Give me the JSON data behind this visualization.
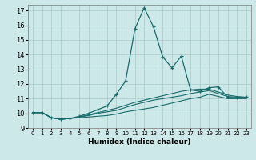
{
  "xlabel": "Humidex (Indice chaleur)",
  "bg_color": "#cde8e8",
  "grid_color": "#aecece",
  "line_color": "#1a6b6b",
  "xlim": [
    -0.5,
    23.5
  ],
  "ylim": [
    9,
    17.4
  ],
  "xticks": [
    0,
    1,
    2,
    3,
    4,
    5,
    6,
    7,
    8,
    9,
    10,
    11,
    12,
    13,
    14,
    15,
    16,
    17,
    18,
    19,
    20,
    21,
    22,
    23
  ],
  "yticks": [
    9,
    10,
    11,
    12,
    13,
    14,
    15,
    16,
    17
  ],
  "series": [
    {
      "x": [
        0,
        1,
        2,
        3,
        4,
        5,
        6,
        7,
        8,
        9,
        10,
        11,
        12,
        13,
        14,
        15,
        16,
        17,
        18,
        19,
        20,
        21,
        22,
        23
      ],
      "y": [
        10.05,
        10.05,
        9.7,
        9.6,
        9.65,
        9.7,
        9.75,
        9.8,
        9.85,
        9.95,
        10.1,
        10.2,
        10.3,
        10.4,
        10.55,
        10.7,
        10.85,
        11.0,
        11.1,
        11.3,
        11.15,
        11.0,
        11.0,
        11.0
      ],
      "marker": false
    },
    {
      "x": [
        0,
        1,
        2,
        3,
        4,
        5,
        6,
        7,
        8,
        9,
        10,
        11,
        12,
        13,
        14,
        15,
        16,
        17,
        18,
        19,
        20,
        21,
        22,
        23
      ],
      "y": [
        10.05,
        10.05,
        9.7,
        9.6,
        9.65,
        9.75,
        9.85,
        10.0,
        10.1,
        10.2,
        10.4,
        10.6,
        10.75,
        10.9,
        11.0,
        11.1,
        11.2,
        11.35,
        11.45,
        11.55,
        11.35,
        11.15,
        11.1,
        11.1
      ],
      "marker": false
    },
    {
      "x": [
        0,
        1,
        2,
        3,
        4,
        5,
        6,
        7,
        8,
        9,
        10,
        11,
        12,
        13,
        14,
        15,
        16,
        17,
        18,
        19,
        20,
        21,
        22,
        23
      ],
      "y": [
        10.05,
        10.05,
        9.7,
        9.6,
        9.65,
        9.75,
        9.9,
        10.05,
        10.2,
        10.35,
        10.55,
        10.75,
        10.9,
        11.05,
        11.2,
        11.35,
        11.5,
        11.6,
        11.65,
        11.65,
        11.45,
        11.25,
        11.15,
        11.1
      ],
      "marker": false
    },
    {
      "x": [
        0,
        1,
        2,
        3,
        4,
        5,
        6,
        7,
        8,
        9,
        10,
        11,
        12,
        13,
        14,
        15,
        16,
        17,
        18,
        19,
        20,
        21,
        22,
        23
      ],
      "y": [
        10.05,
        10.05,
        9.7,
        9.6,
        9.65,
        9.8,
        10.0,
        10.25,
        10.5,
        11.3,
        12.2,
        15.75,
        17.2,
        15.9,
        13.85,
        13.1,
        13.9,
        11.6,
        11.5,
        11.75,
        11.8,
        11.1,
        11.05,
        11.1
      ],
      "marker": true
    }
  ]
}
